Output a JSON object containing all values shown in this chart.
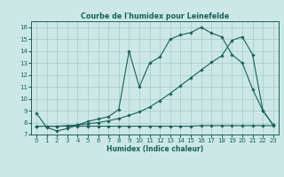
{
  "title": "Courbe de l'humidex pour Leinefelde",
  "xlabel": "Humidex (Indice chaleur)",
  "xlim": [
    -0.5,
    23.5
  ],
  "ylim": [
    7,
    16.5
  ],
  "yticks": [
    7,
    8,
    9,
    10,
    11,
    12,
    13,
    14,
    15,
    16
  ],
  "xticks": [
    0,
    1,
    2,
    3,
    4,
    5,
    6,
    7,
    8,
    9,
    10,
    11,
    12,
    13,
    14,
    15,
    16,
    17,
    18,
    19,
    20,
    21,
    22,
    23
  ],
  "bg_color": "#cce8e6",
  "grid_color": "#aacfcc",
  "line_color": "#1a5f5a",
  "line1_x": [
    0,
    1,
    2,
    3,
    4,
    5,
    6,
    7,
    8,
    9,
    10,
    11,
    12,
    13,
    14,
    15,
    16,
    17,
    18,
    19,
    20,
    21,
    22,
    23
  ],
  "line1_y": [
    8.8,
    7.6,
    7.3,
    7.5,
    7.8,
    8.1,
    8.3,
    8.5,
    9.1,
    14.0,
    11.0,
    13.0,
    13.5,
    15.0,
    15.35,
    15.55,
    16.0,
    15.5,
    15.2,
    13.7,
    13.0,
    10.8,
    9.0,
    7.8
  ],
  "line2_x": [
    0,
    1,
    2,
    3,
    4,
    5,
    6,
    7,
    8,
    9,
    10,
    11,
    12,
    13,
    14,
    15,
    16,
    17,
    18,
    19,
    20,
    21,
    22,
    23
  ],
  "line2_y": [
    7.7,
    7.7,
    7.7,
    7.75,
    7.8,
    7.9,
    8.0,
    8.15,
    8.35,
    8.6,
    8.9,
    9.3,
    9.85,
    10.45,
    11.1,
    11.75,
    12.4,
    13.05,
    13.6,
    14.9,
    15.2,
    13.7,
    9.0,
    7.8
  ],
  "line3_x": [
    0,
    1,
    2,
    3,
    4,
    5,
    6,
    7,
    8,
    9,
    10,
    11,
    12,
    13,
    14,
    15,
    16,
    17,
    18,
    19,
    20,
    21,
    22,
    23
  ],
  "line3_y": [
    7.7,
    7.7,
    7.7,
    7.7,
    7.7,
    7.7,
    7.7,
    7.7,
    7.7,
    7.7,
    7.7,
    7.7,
    7.7,
    7.7,
    7.7,
    7.7,
    7.75,
    7.75,
    7.75,
    7.75,
    7.75,
    7.75,
    7.75,
    7.75
  ]
}
